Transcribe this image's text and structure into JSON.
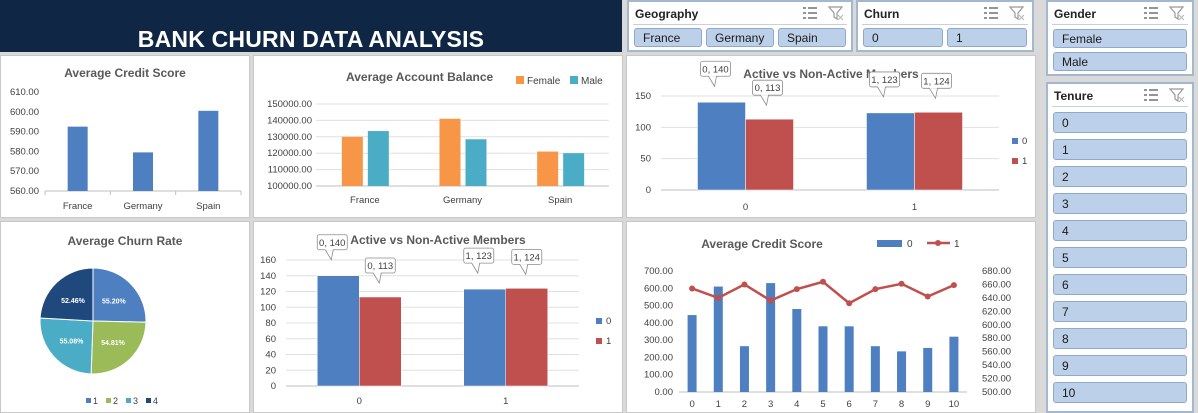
{
  "header": {
    "title": "BANK CHURN DATA ANALYSIS"
  },
  "colors": {
    "blue": "#4e7fc0",
    "red": "#c0504d",
    "orange": "#f79646",
    "teal": "#4bacc6",
    "navy": "#0f2744"
  },
  "slicers": {
    "geography": {
      "title": "Geography",
      "items": [
        "France",
        "Germany",
        "Spain"
      ]
    },
    "churn": {
      "title": "Churn",
      "items": [
        "0",
        "1"
      ]
    },
    "gender": {
      "title": "Gender",
      "items": [
        "Female",
        "Male"
      ]
    },
    "tenure": {
      "title": "Tenure",
      "items": [
        "0",
        "1",
        "2",
        "3",
        "4",
        "5",
        "6",
        "7",
        "8",
        "9",
        "10"
      ]
    }
  },
  "chart_data": [
    {
      "id": "avg_credit_score_geo",
      "type": "bar",
      "title": "Average Credit Score",
      "categories": [
        "France",
        "Germany",
        "Spain"
      ],
      "values": [
        592.5,
        579.5,
        600.5
      ],
      "ylim": [
        560,
        610
      ],
      "yticks": [
        "560.00",
        "570.00",
        "580.00",
        "590.00",
        "600.00",
        "610.00"
      ]
    },
    {
      "id": "avg_account_balance",
      "type": "bar",
      "title": "Average Account Balance",
      "categories": [
        "France",
        "Germany",
        "Spain"
      ],
      "series": [
        {
          "name": "Female",
          "values": [
            130000,
            141000,
            121000
          ]
        },
        {
          "name": "Male",
          "values": [
            133500,
            128500,
            120000
          ]
        }
      ],
      "ylim": [
        100000,
        150000
      ],
      "yticks": [
        "100000.00",
        "110000.00",
        "120000.00",
        "130000.00",
        "140000.00",
        "150000.00"
      ]
    },
    {
      "id": "active_members_top",
      "type": "bar",
      "title": "Active vs Non-Active Members",
      "categories": [
        "0",
        "1"
      ],
      "series": [
        {
          "name": "0",
          "values": [
            140,
            123
          ]
        },
        {
          "name": "1",
          "values": [
            113,
            124
          ]
        }
      ],
      "data_labels": [
        [
          "0, 140",
          "1, 123"
        ],
        [
          "0, 113",
          "1, 124"
        ]
      ],
      "ylim": [
        0,
        150
      ],
      "yticks": [
        "0",
        "50",
        "100",
        "150"
      ]
    },
    {
      "id": "avg_churn_rate",
      "type": "pie",
      "title": "Average Churn Rate",
      "labels": [
        "1",
        "2",
        "3",
        "4"
      ],
      "values": [
        55.2,
        54.81,
        55.08,
        52.46
      ],
      "value_labels": [
        "55.20%",
        "54.81%",
        "55.08%",
        "52.46%"
      ]
    },
    {
      "id": "active_members_bottom",
      "type": "bar",
      "title": "Active vs Non-Active Members",
      "categories": [
        "0",
        "1"
      ],
      "series": [
        {
          "name": "0",
          "values": [
            140,
            123
          ]
        },
        {
          "name": "1",
          "values": [
            113,
            124
          ]
        }
      ],
      "data_labels": [
        [
          "0, 140",
          "1, 123"
        ],
        [
          "0, 113",
          "1, 124"
        ]
      ],
      "ylim": [
        0,
        160
      ],
      "yticks": [
        "0",
        "20",
        "40",
        "60",
        "80",
        "100",
        "120",
        "140",
        "160"
      ]
    },
    {
      "id": "avg_credit_score_tenure",
      "type": "bar",
      "title": "Average Credit Score",
      "categories": [
        "0",
        "1",
        "2",
        "3",
        "4",
        "5",
        "6",
        "7",
        "8",
        "9",
        "10"
      ],
      "series": [
        {
          "name": "0",
          "values": [
            445,
            610,
            265,
            630,
            480,
            380,
            380,
            265,
            235,
            255,
            320
          ],
          "axis": "left"
        },
        {
          "name": "1",
          "values": [
            654,
            640,
            660,
            636,
            653,
            664,
            632,
            653,
            661,
            642,
            659
          ],
          "axis": "right",
          "type": "line"
        }
      ],
      "ylim": [
        0,
        700
      ],
      "y2lim": [
        500,
        680
      ],
      "yticks": [
        "0.00",
        "100.00",
        "200.00",
        "300.00",
        "400.00",
        "500.00",
        "600.00",
        "700.00"
      ],
      "y2ticks": [
        "500.00",
        "520.00",
        "540.00",
        "560.00",
        "580.00",
        "600.00",
        "620.00",
        "640.00",
        "660.00",
        "680.00"
      ]
    }
  ]
}
